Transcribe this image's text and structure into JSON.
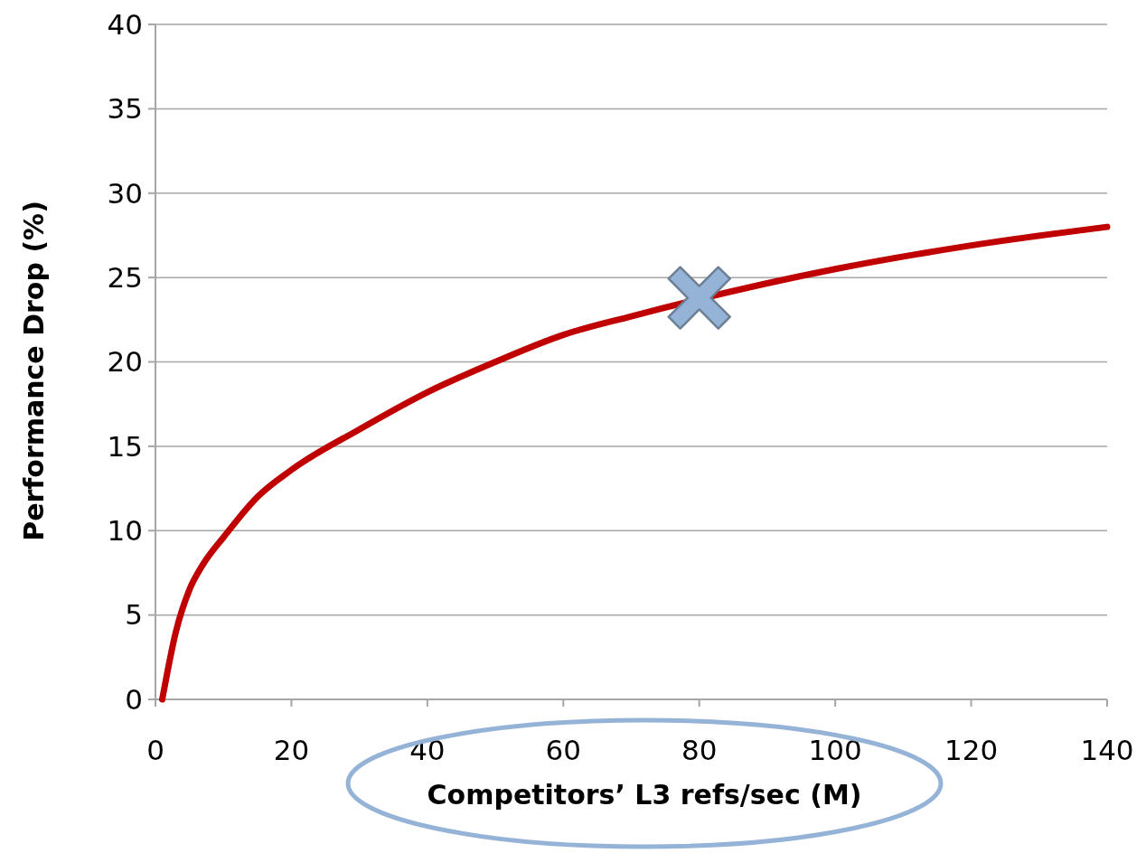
{
  "chart_data": {
    "type": "line",
    "xlabel": "Competitors’ L3 refs/sec (M)",
    "ylabel": "Performance Drop (%)",
    "xlim": [
      0,
      140
    ],
    "xticks": [
      0,
      20,
      40,
      60,
      80,
      100,
      120,
      140
    ],
    "ylim": [
      0,
      40
    ],
    "yticks": [
      0,
      5,
      10,
      15,
      20,
      25,
      30,
      35,
      40
    ],
    "grid": "y",
    "series": [
      {
        "color": "#c00000",
        "marker": "none",
        "x": [
          1,
          3,
          5,
          7,
          10,
          15,
          20,
          30,
          40,
          50,
          60,
          70,
          100,
          120,
          140
        ],
        "values": [
          0,
          4,
          6.5,
          8,
          9.6,
          12,
          13.6,
          16,
          18.2,
          20,
          21.6,
          22.7,
          25.5,
          26.9,
          28
        ]
      },
      {
        "type": "scatter",
        "color": "#95b3d7",
        "marker": "cross",
        "x": [
          80
        ],
        "values": [
          23.8
        ]
      }
    ]
  }
}
